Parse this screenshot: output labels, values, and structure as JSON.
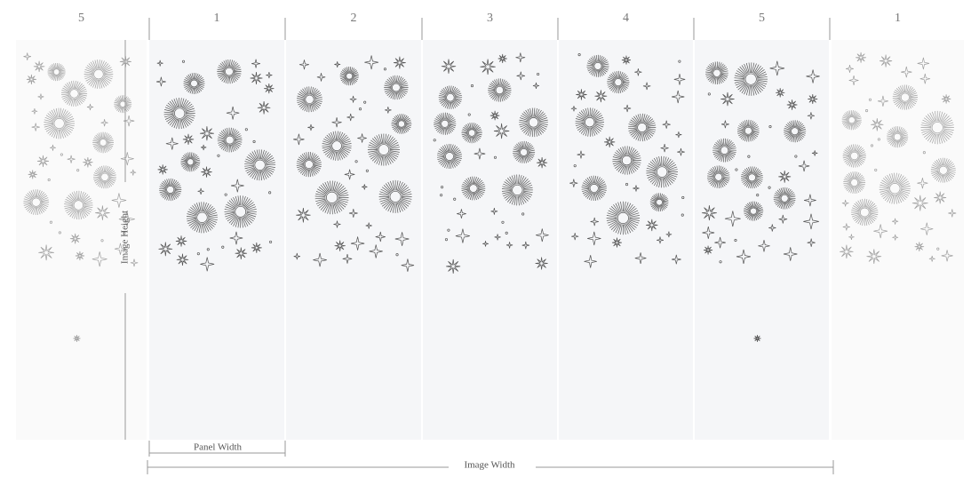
{
  "panels": [
    {
      "label": "5"
    },
    {
      "label": "1"
    },
    {
      "label": "2"
    },
    {
      "label": "3"
    },
    {
      "label": "4"
    },
    {
      "label": "5"
    },
    {
      "label": "1"
    }
  ],
  "dimensions": {
    "image_height": "Image Height",
    "panel_width": "Panel Width",
    "image_width": "Image Width"
  }
}
